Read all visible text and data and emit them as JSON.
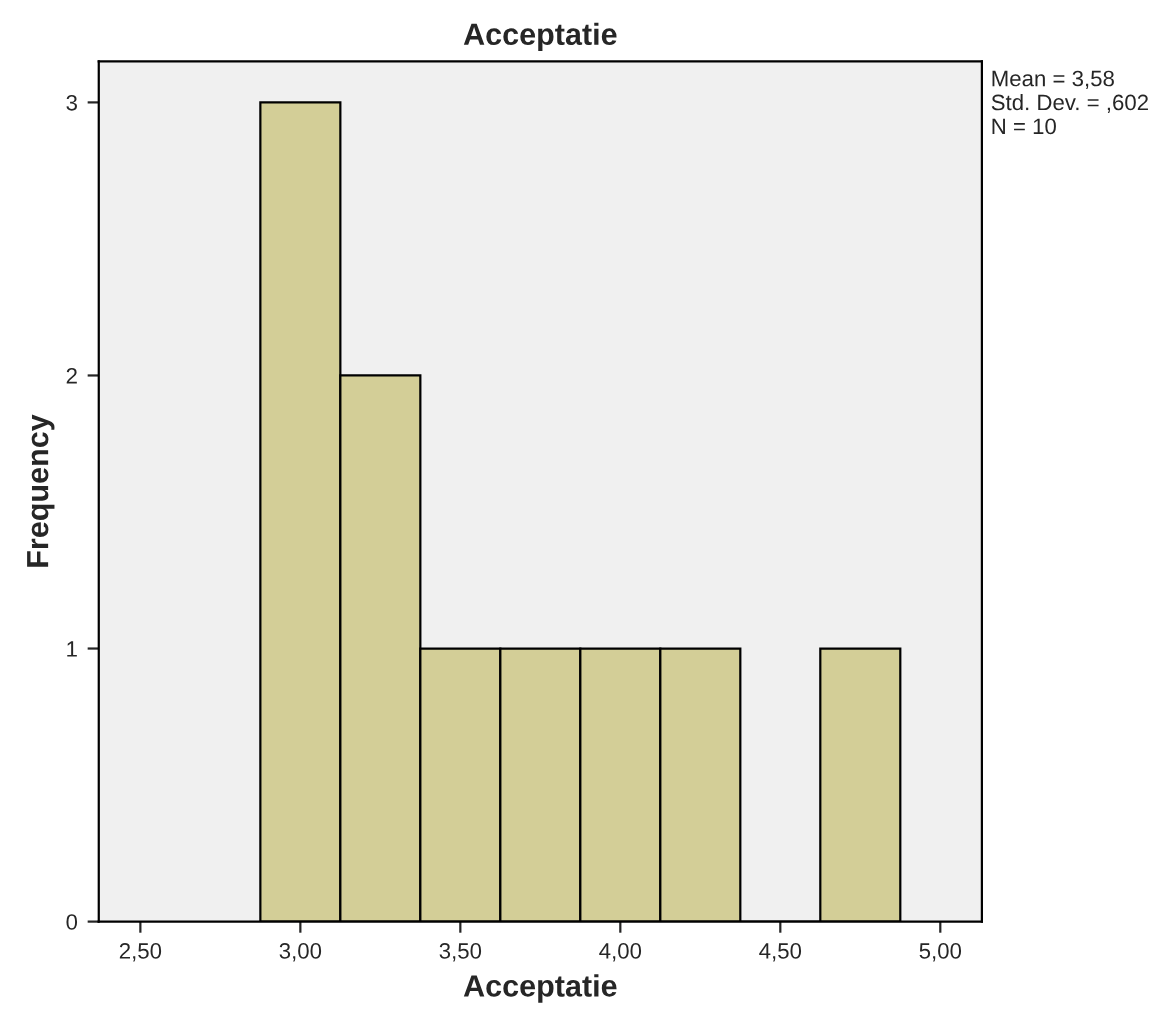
{
  "chart_data": {
    "type": "histogram",
    "title": "Acceptatie",
    "xlabel": "Acceptatie",
    "ylabel": "Frequency",
    "bins": [
      2.875,
      3.125,
      3.375,
      3.625,
      3.875,
      4.125,
      4.375,
      4.625,
      4.875
    ],
    "values": [
      3,
      2,
      1,
      1,
      1,
      1,
      0,
      1
    ],
    "color": "#d3ce97",
    "xlim": [
      2.37,
      5.13
    ],
    "ylim": [
      0,
      3.15
    ],
    "xticks": [
      {
        "value": 2.5,
        "label": "2,50"
      },
      {
        "value": 3.0,
        "label": "3,00"
      },
      {
        "value": 3.5,
        "label": "3,50"
      },
      {
        "value": 4.0,
        "label": "4,00"
      },
      {
        "value": 4.5,
        "label": "4,50"
      },
      {
        "value": 5.0,
        "label": "5,00"
      }
    ],
    "yticks": [
      0,
      1,
      2,
      3
    ],
    "grid": false,
    "annotations": [
      "Mean = 3,58\nStd. Dev. = ,602\nN = 10"
    ]
  }
}
